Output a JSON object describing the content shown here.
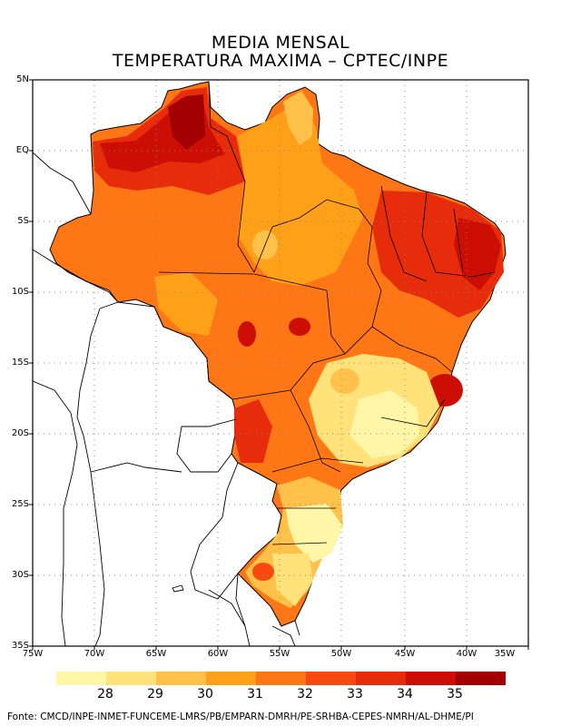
{
  "title_line1": "MEDIA MENSAL",
  "title_line2": "TEMPERATURA MAXIMA – CPTEC/INPE",
  "source": "Fonte: CMCD/INPE-INMET-FUNCEME-LMRS/PB/EMPARN-DMRH/PE-SRHBA-CEPES-NMRH/AL-DHME/PI",
  "lat_labels": [
    "5N",
    "EQ",
    "5S",
    "10S",
    "15S",
    "20S",
    "25S",
    "30S",
    "35S"
  ],
  "lon_labels": [
    "75W",
    "70W",
    "65W",
    "60W",
    "55W",
    "50W",
    "45W",
    "40W",
    "35W"
  ],
  "legend": {
    "colors": [
      "#fff6a8",
      "#ffe27a",
      "#ffc14a",
      "#ffa019",
      "#ff7714",
      "#f84a10",
      "#e72c0b",
      "#cc0e05",
      "#a30004"
    ],
    "labels": [
      "28",
      "29",
      "30",
      "31",
      "32",
      "33",
      "34",
      "35"
    ]
  },
  "map": {
    "projection_range": {
      "lon": [
        -75,
        -35
      ],
      "lat": [
        -35,
        5
      ]
    },
    "grid": "dotted",
    "variable": "Temperatura máxima (°C)"
  }
}
